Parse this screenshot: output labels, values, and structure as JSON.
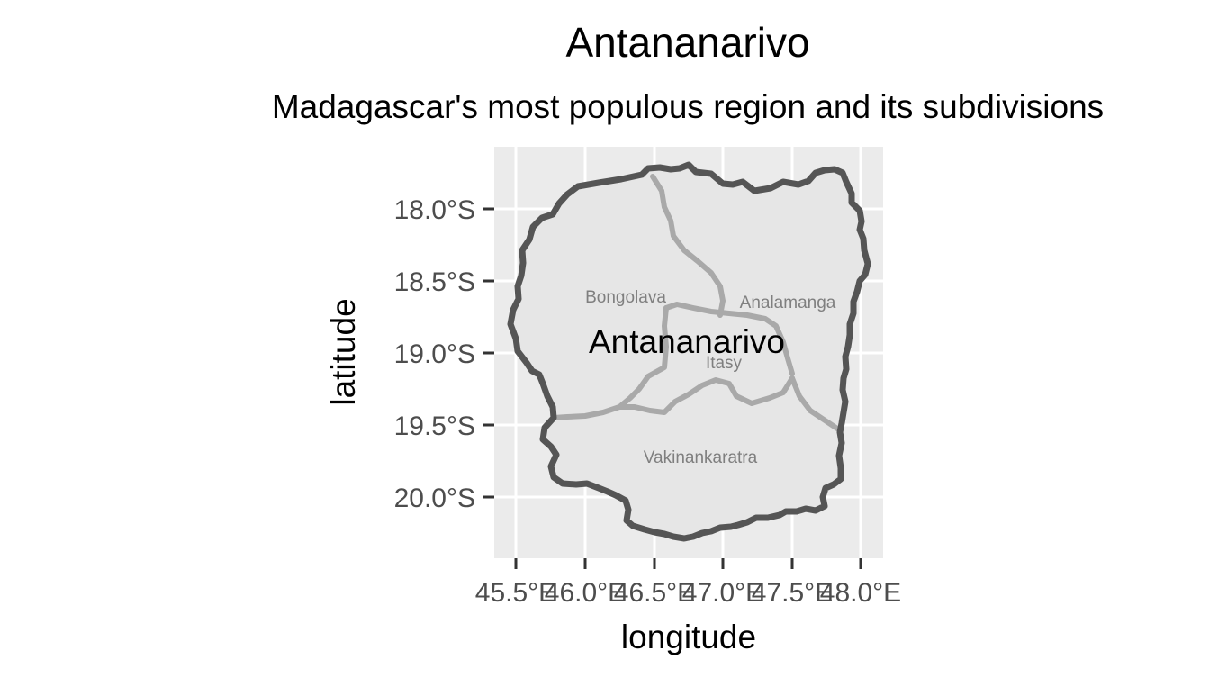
{
  "map": {
    "title": "Antananarivo",
    "subtitle": "Madagascar's most populous region and its subdivisions",
    "xlabel": "longitude",
    "ylabel": "latitude",
    "x_ticks": [
      "45.5°E",
      "46.0°E",
      "46.5°E",
      "47.0°E",
      "47.5°E",
      "48.0°E"
    ],
    "y_ticks": [
      "18.0°S",
      "18.5°S",
      "19.0°S",
      "19.5°S",
      "20.0°S"
    ],
    "region_label": "Antananarivo",
    "subdivisions": [
      {
        "name": "Bongolava"
      },
      {
        "name": "Analamanga"
      },
      {
        "name": "Itasy"
      },
      {
        "name": "Vakinankaratra"
      }
    ],
    "colors": {
      "panel": "#ebebeb",
      "gridline": "#ffffff",
      "region_fill": "#e6e6e6",
      "region_border": "#555555",
      "subdivision_border": "#a9a9a9",
      "subdivision_label": "#7f7f7f",
      "tick_label": "#4d4d4d"
    }
  }
}
